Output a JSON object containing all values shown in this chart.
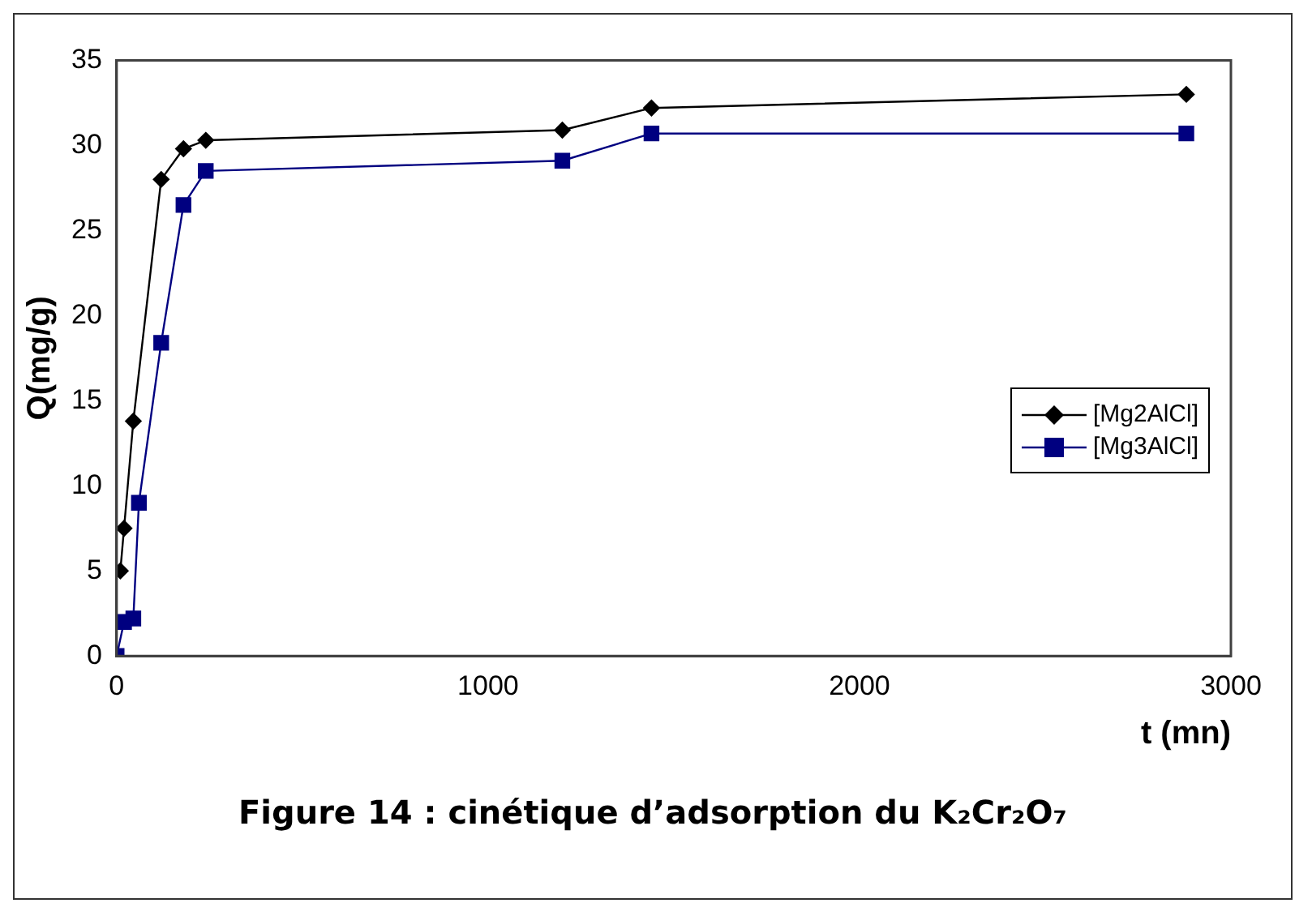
{
  "chart_data": {
    "type": "line",
    "xlabel": "t (mn)",
    "ylabel": "Q(mg/g)",
    "xlim": [
      0,
      3000
    ],
    "xticks": [
      0,
      1000,
      2000,
      3000
    ],
    "ylim": [
      0,
      35
    ],
    "yticks": [
      0,
      5,
      10,
      15,
      20,
      25,
      30,
      35
    ],
    "grid": false,
    "legend": "right",
    "line_style": "solid",
    "series": [
      {
        "name": "[Mg2AlCl]",
        "color": "#000000",
        "marker": "diamond",
        "x": [
          10,
          20,
          45,
          120,
          180,
          240,
          1200,
          1440,
          2880
        ],
        "values": [
          5,
          7.5,
          13.8,
          28,
          29.8,
          30.3,
          30.9,
          32.2,
          33
        ]
      },
      {
        "name": "[Mg3AlCl]",
        "color": "#000080",
        "marker": "square",
        "x": [
          0,
          20,
          45,
          60,
          120,
          180,
          240,
          1200,
          1440,
          2880
        ],
        "values": [
          0,
          2,
          2.2,
          9,
          18.4,
          26.5,
          28.5,
          29.1,
          30.7,
          30.7
        ]
      }
    ],
    "annotations": [
      "Figure 14 : cinétique d’adsorption du K₂Cr₂O₇"
    ]
  }
}
